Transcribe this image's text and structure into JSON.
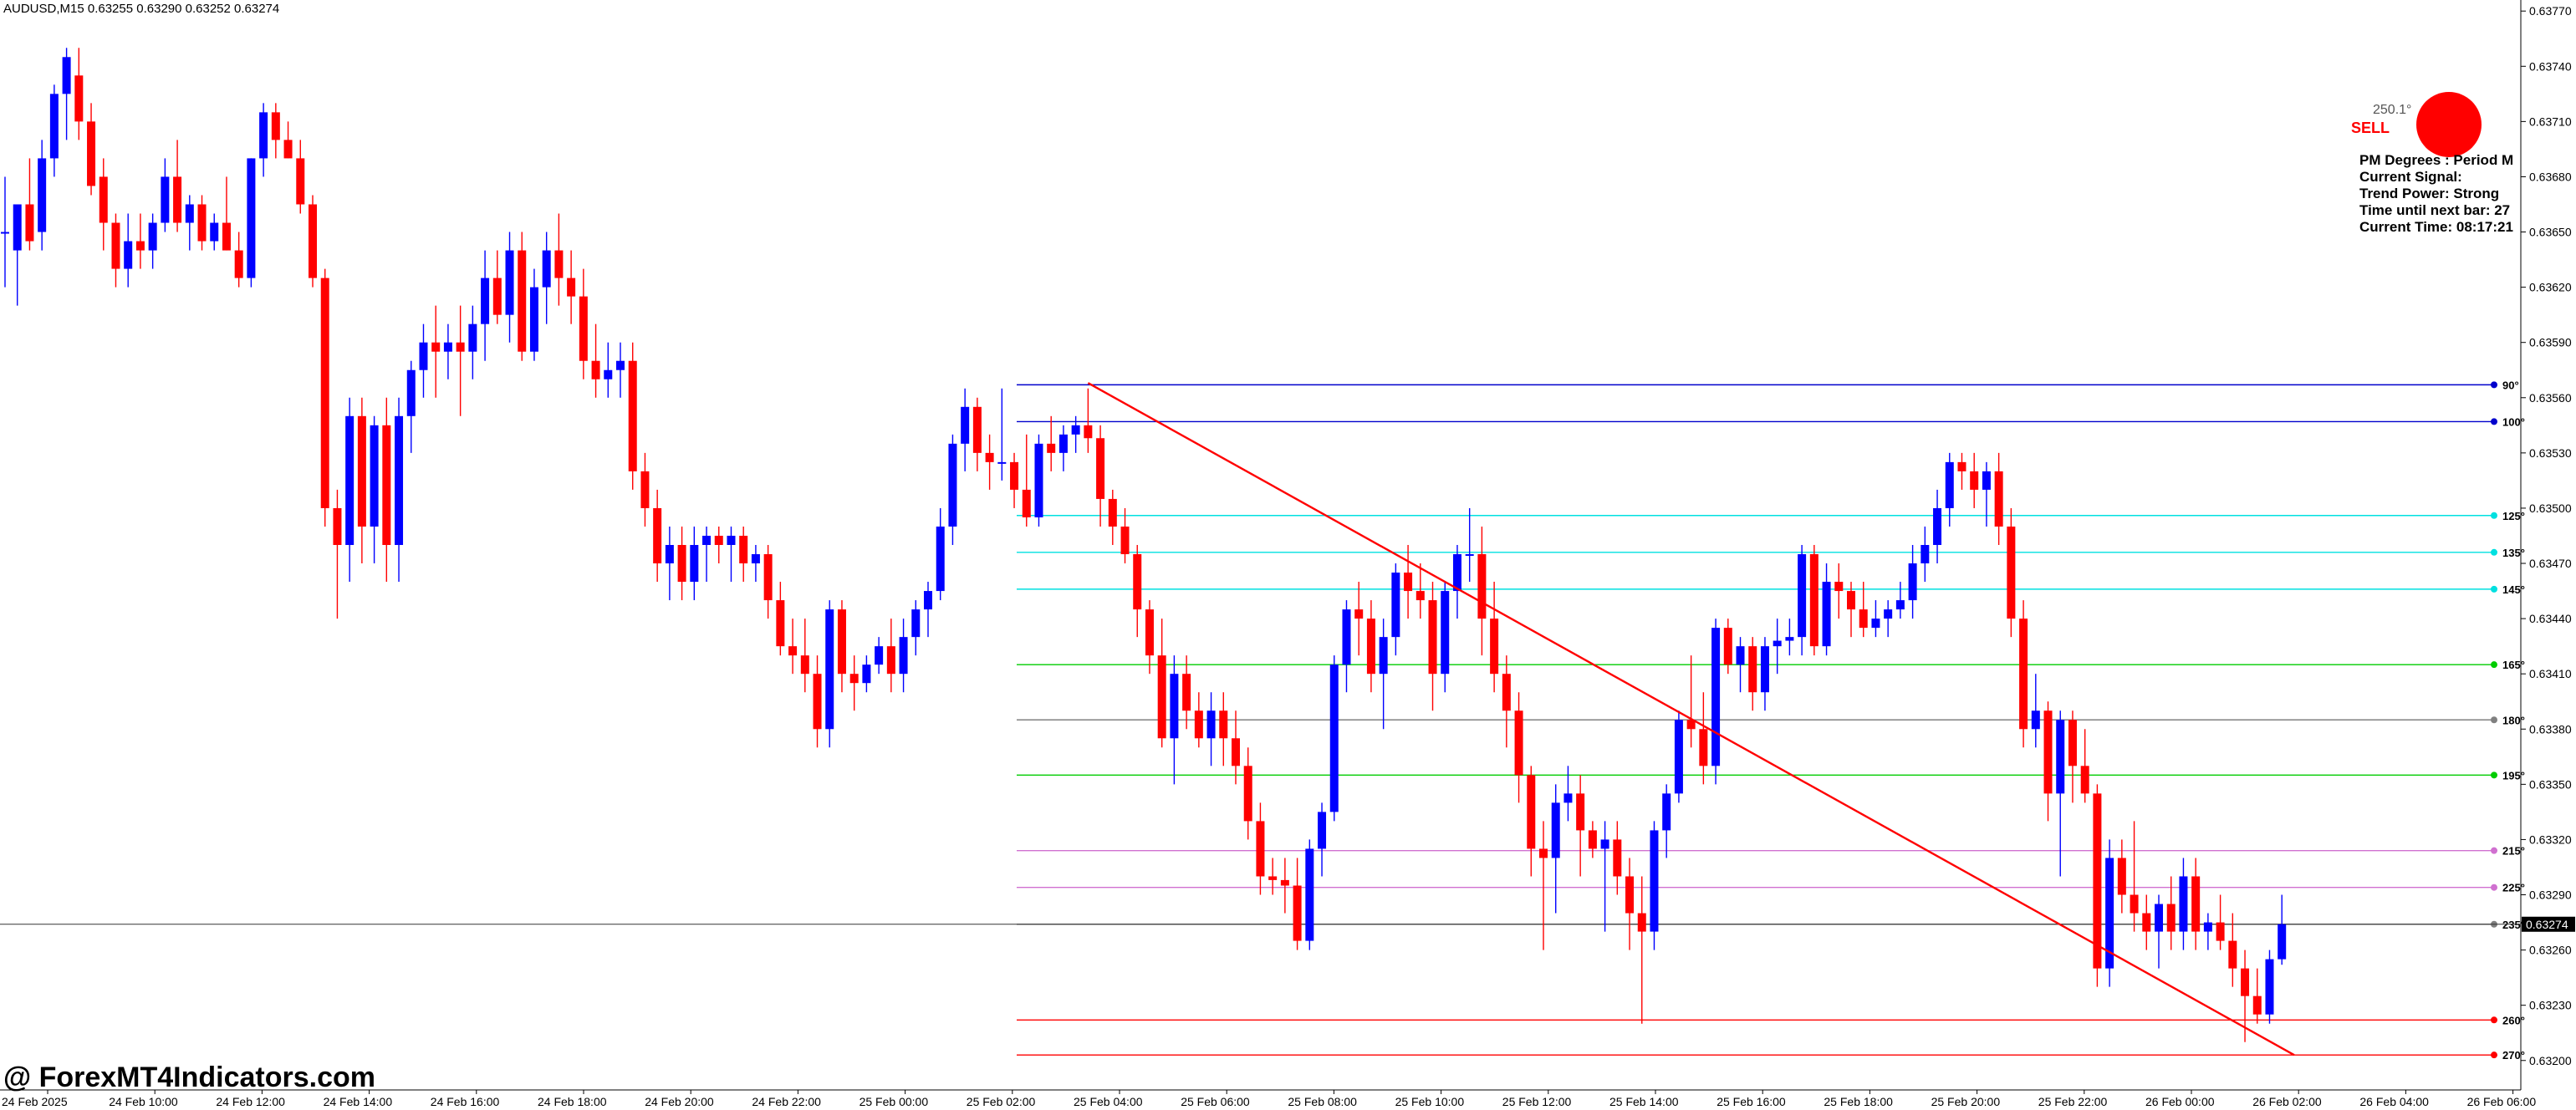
{
  "symbol_header": "AUDUSD,M15  0.63255 0.63290 0.63252 0.63274",
  "watermark": "@ ForexMT4Indicators.com",
  "indicator": {
    "degree_text": "250.1°",
    "signal_text": "SELL",
    "signal_color": "#ff0000",
    "panel_lines": [
      "PM Degrees : Period M",
      "Current Signal:",
      "Trend Power: Strong",
      "Time until next bar: 27",
      "Current Time: 08:17:21"
    ]
  },
  "colors": {
    "bull": "#0000ff",
    "bear": "#ff0000",
    "grid_axis": "#000000",
    "trendline": "#ff0000"
  },
  "chart_data": {
    "type": "candlestick",
    "symbol": "AUDUSD",
    "timeframe": "M15",
    "current_price": "0.63274",
    "ylim": [
      0.6318,
      0.6376
    ],
    "price_ticks": [
      "0.63770",
      "0.63740",
      "0.63710",
      "0.63680",
      "0.63650",
      "0.63620",
      "0.63590",
      "0.63560",
      "0.63530",
      "0.63500",
      "0.63470",
      "0.63440",
      "0.63410",
      "0.63380",
      "0.63350",
      "0.63320",
      "0.63290",
      "0.63260",
      "0.63230",
      "0.63200"
    ],
    "time_ticks": [
      "24 Feb 2025",
      "24 Feb 10:00",
      "24 Feb 12:00",
      "24 Feb 14:00",
      "24 Feb 16:00",
      "24 Feb 18:00",
      "24 Feb 20:00",
      "24 Feb 22:00",
      "25 Feb 00:00",
      "25 Feb 02:00",
      "25 Feb 04:00",
      "25 Feb 06:00",
      "25 Feb 08:00",
      "25 Feb 10:00",
      "25 Feb 12:00",
      "25 Feb 14:00",
      "25 Feb 16:00",
      "25 Feb 18:00",
      "25 Feb 20:00",
      "25 Feb 22:00",
      "26 Feb 00:00",
      "26 Feb 02:00",
      "26 Feb 04:00",
      "26 Feb 06:00"
    ],
    "gann_levels": [
      {
        "label": "90°",
        "price": 0.63567,
        "color": "#0000cc"
      },
      {
        "label": "100°",
        "price": 0.63547,
        "color": "#0000cc"
      },
      {
        "label": "125°",
        "price": 0.63496,
        "color": "#00e0e0"
      },
      {
        "label": "135°",
        "price": 0.63476,
        "color": "#00e0e0"
      },
      {
        "label": "145°",
        "price": 0.63456,
        "color": "#00e0e0"
      },
      {
        "label": "165°",
        "price": 0.63415,
        "color": "#00cc00"
      },
      {
        "label": "180°",
        "price": 0.63385,
        "color": "#808080"
      },
      {
        "label": "195°",
        "price": 0.63355,
        "color": "#00cc00"
      },
      {
        "label": "215°",
        "price": 0.63314,
        "color": "#d070d0"
      },
      {
        "label": "225°",
        "price": 0.63294,
        "color": "#d070d0"
      },
      {
        "label": "235°",
        "price": 0.63274,
        "color": "#808080"
      },
      {
        "label": "260°",
        "price": 0.63222,
        "color": "#ff0000"
      },
      {
        "label": "270°",
        "price": 0.63203,
        "color": "#ff0000"
      }
    ],
    "trendline": {
      "from": {
        "bar": 88,
        "price": 0.63568
      },
      "to": {
        "bar": 186,
        "price": 0.63203
      }
    },
    "ohlc": [
      [
        0.6365,
        0.6368,
        0.6362,
        0.6365
      ],
      [
        0.6364,
        0.63665,
        0.6361,
        0.63665
      ],
      [
        0.63665,
        0.6369,
        0.6364,
        0.63645
      ],
      [
        0.6365,
        0.637,
        0.6364,
        0.6369
      ],
      [
        0.6369,
        0.6373,
        0.6368,
        0.63725
      ],
      [
        0.63725,
        0.6375,
        0.637,
        0.63745
      ],
      [
        0.63735,
        0.6375,
        0.637,
        0.6371
      ],
      [
        0.6371,
        0.6372,
        0.6367,
        0.63675
      ],
      [
        0.6368,
        0.6369,
        0.6364,
        0.63655
      ],
      [
        0.63655,
        0.6366,
        0.6362,
        0.6363
      ],
      [
        0.6363,
        0.6366,
        0.6362,
        0.63645
      ],
      [
        0.63645,
        0.6366,
        0.6363,
        0.6364
      ],
      [
        0.6364,
        0.6366,
        0.6363,
        0.63655
      ],
      [
        0.63655,
        0.6369,
        0.6365,
        0.6368
      ],
      [
        0.6368,
        0.637,
        0.6365,
        0.63655
      ],
      [
        0.63655,
        0.6367,
        0.6364,
        0.63665
      ],
      [
        0.63665,
        0.6367,
        0.6364,
        0.63645
      ],
      [
        0.63645,
        0.6366,
        0.6364,
        0.63655
      ],
      [
        0.63655,
        0.6368,
        0.6364,
        0.6364
      ],
      [
        0.6364,
        0.6365,
        0.6362,
        0.63625
      ],
      [
        0.63625,
        0.6369,
        0.6362,
        0.6369
      ],
      [
        0.6369,
        0.6372,
        0.6368,
        0.63715
      ],
      [
        0.63715,
        0.6372,
        0.6369,
        0.637
      ],
      [
        0.637,
        0.6371,
        0.6369,
        0.6369
      ],
      [
        0.6369,
        0.637,
        0.6366,
        0.63665
      ],
      [
        0.63665,
        0.6367,
        0.6362,
        0.63625
      ],
      [
        0.63625,
        0.6363,
        0.6349,
        0.635
      ],
      [
        0.635,
        0.6351,
        0.6344,
        0.6348
      ],
      [
        0.6348,
        0.6356,
        0.6346,
        0.6355
      ],
      [
        0.6355,
        0.6356,
        0.6347,
        0.6349
      ],
      [
        0.6349,
        0.6355,
        0.6347,
        0.63545
      ],
      [
        0.63545,
        0.6356,
        0.6346,
        0.6348
      ],
      [
        0.6348,
        0.6356,
        0.6346,
        0.6355
      ],
      [
        0.6355,
        0.6358,
        0.6353,
        0.63575
      ],
      [
        0.63575,
        0.636,
        0.6356,
        0.6359
      ],
      [
        0.6359,
        0.6361,
        0.6356,
        0.63585
      ],
      [
        0.63585,
        0.636,
        0.6357,
        0.6359
      ],
      [
        0.6359,
        0.6361,
        0.6355,
        0.63585
      ],
      [
        0.63585,
        0.6361,
        0.6357,
        0.636
      ],
      [
        0.636,
        0.6364,
        0.6358,
        0.63625
      ],
      [
        0.63625,
        0.6364,
        0.636,
        0.63605
      ],
      [
        0.63605,
        0.6365,
        0.6359,
        0.6364
      ],
      [
        0.6364,
        0.6365,
        0.6358,
        0.63585
      ],
      [
        0.63585,
        0.6363,
        0.6358,
        0.6362
      ],
      [
        0.6362,
        0.6365,
        0.636,
        0.6364
      ],
      [
        0.6364,
        0.6366,
        0.6361,
        0.63625
      ],
      [
        0.63625,
        0.6364,
        0.636,
        0.63615
      ],
      [
        0.63615,
        0.6363,
        0.6357,
        0.6358
      ],
      [
        0.6358,
        0.636,
        0.6356,
        0.6357
      ],
      [
        0.6357,
        0.6359,
        0.6356,
        0.63575
      ],
      [
        0.63575,
        0.6359,
        0.6356,
        0.6358
      ],
      [
        0.6358,
        0.6359,
        0.6351,
        0.6352
      ],
      [
        0.6352,
        0.6353,
        0.6349,
        0.635
      ],
      [
        0.635,
        0.6351,
        0.6346,
        0.6347
      ],
      [
        0.6347,
        0.6349,
        0.6345,
        0.6348
      ],
      [
        0.6348,
        0.6349,
        0.6345,
        0.6346
      ],
      [
        0.6346,
        0.6349,
        0.6345,
        0.6348
      ],
      [
        0.6348,
        0.6349,
        0.6346,
        0.63485
      ],
      [
        0.63485,
        0.6349,
        0.6347,
        0.6348
      ],
      [
        0.6348,
        0.6349,
        0.6346,
        0.63485
      ],
      [
        0.63485,
        0.6349,
        0.6346,
        0.6347
      ],
      [
        0.6347,
        0.6348,
        0.6346,
        0.63475
      ],
      [
        0.63475,
        0.6348,
        0.6344,
        0.6345
      ],
      [
        0.6345,
        0.6346,
        0.6342,
        0.63425
      ],
      [
        0.63425,
        0.6344,
        0.6341,
        0.6342
      ],
      [
        0.6342,
        0.6344,
        0.634,
        0.6341
      ],
      [
        0.6341,
        0.6342,
        0.6337,
        0.6338
      ],
      [
        0.6338,
        0.6345,
        0.6337,
        0.63445
      ],
      [
        0.63445,
        0.6345,
        0.634,
        0.6341
      ],
      [
        0.6341,
        0.6342,
        0.6339,
        0.63405
      ],
      [
        0.63405,
        0.6342,
        0.634,
        0.63415
      ],
      [
        0.63415,
        0.6343,
        0.6341,
        0.63425
      ],
      [
        0.63425,
        0.6344,
        0.634,
        0.6341
      ],
      [
        0.6341,
        0.6344,
        0.634,
        0.6343
      ],
      [
        0.6343,
        0.6345,
        0.6342,
        0.63445
      ],
      [
        0.63445,
        0.6346,
        0.6343,
        0.63455
      ],
      [
        0.63455,
        0.635,
        0.6345,
        0.6349
      ],
      [
        0.6349,
        0.6354,
        0.6348,
        0.63535
      ],
      [
        0.63535,
        0.63565,
        0.6352,
        0.63555
      ],
      [
        0.63555,
        0.6356,
        0.6352,
        0.6353
      ],
      [
        0.6353,
        0.6354,
        0.6351,
        0.63525
      ],
      [
        0.63525,
        0.63565,
        0.63515,
        0.63525
      ],
      [
        0.63525,
        0.6353,
        0.635,
        0.6351
      ],
      [
        0.6351,
        0.6354,
        0.6349,
        0.63495
      ],
      [
        0.63495,
        0.6354,
        0.6349,
        0.63535
      ],
      [
        0.63535,
        0.6355,
        0.6352,
        0.6353
      ],
      [
        0.6353,
        0.63545,
        0.6352,
        0.6354
      ],
      [
        0.6354,
        0.6355,
        0.6353,
        0.63545
      ],
      [
        0.63545,
        0.63565,
        0.6353,
        0.63538
      ],
      [
        0.63538,
        0.63545,
        0.6349,
        0.63505
      ],
      [
        0.63505,
        0.6351,
        0.6348,
        0.6349
      ],
      [
        0.6349,
        0.635,
        0.6347,
        0.63475
      ],
      [
        0.63475,
        0.6348,
        0.6343,
        0.63445
      ],
      [
        0.63445,
        0.6345,
        0.6341,
        0.6342
      ],
      [
        0.6342,
        0.6344,
        0.6337,
        0.63375
      ],
      [
        0.63375,
        0.6342,
        0.6335,
        0.6341
      ],
      [
        0.6341,
        0.6342,
        0.6338,
        0.6339
      ],
      [
        0.6339,
        0.634,
        0.6337,
        0.63375
      ],
      [
        0.63375,
        0.634,
        0.6336,
        0.6339
      ],
      [
        0.6339,
        0.634,
        0.6336,
        0.63375
      ],
      [
        0.63375,
        0.6339,
        0.6335,
        0.6336
      ],
      [
        0.6336,
        0.6337,
        0.6332,
        0.6333
      ],
      [
        0.6333,
        0.6334,
        0.6329,
        0.633
      ],
      [
        0.633,
        0.6331,
        0.6329,
        0.63298
      ],
      [
        0.63298,
        0.6331,
        0.6328,
        0.63295
      ],
      [
        0.63295,
        0.6331,
        0.6326,
        0.63265
      ],
      [
        0.63265,
        0.6332,
        0.6326,
        0.63315
      ],
      [
        0.63315,
        0.6334,
        0.633,
        0.63335
      ],
      [
        0.63335,
        0.6342,
        0.6333,
        0.63415
      ],
      [
        0.63415,
        0.6345,
        0.634,
        0.63445
      ],
      [
        0.63445,
        0.6346,
        0.6342,
        0.6344
      ],
      [
        0.6344,
        0.6345,
        0.634,
        0.6341
      ],
      [
        0.6341,
        0.6344,
        0.6338,
        0.6343
      ],
      [
        0.6343,
        0.6347,
        0.6342,
        0.63465
      ],
      [
        0.63465,
        0.6348,
        0.6344,
        0.63455
      ],
      [
        0.63455,
        0.6347,
        0.6344,
        0.6345
      ],
      [
        0.6345,
        0.6346,
        0.6339,
        0.6341
      ],
      [
        0.6341,
        0.6346,
        0.634,
        0.63455
      ],
      [
        0.63455,
        0.6348,
        0.6344,
        0.63475
      ],
      [
        0.63475,
        0.635,
        0.6346,
        0.63475
      ],
      [
        0.63475,
        0.6349,
        0.6342,
        0.6344
      ],
      [
        0.6344,
        0.6346,
        0.634,
        0.6341
      ],
      [
        0.6341,
        0.6342,
        0.6337,
        0.6339
      ],
      [
        0.6339,
        0.634,
        0.6334,
        0.63355
      ],
      [
        0.63355,
        0.6336,
        0.633,
        0.63315
      ],
      [
        0.63315,
        0.6333,
        0.6326,
        0.6331
      ],
      [
        0.6331,
        0.6335,
        0.6328,
        0.6334
      ],
      [
        0.6334,
        0.6336,
        0.6333,
        0.63345
      ],
      [
        0.63345,
        0.63355,
        0.633,
        0.63325
      ],
      [
        0.63325,
        0.6333,
        0.6331,
        0.63315
      ],
      [
        0.63315,
        0.6333,
        0.6327,
        0.6332
      ],
      [
        0.6332,
        0.6333,
        0.6329,
        0.633
      ],
      [
        0.633,
        0.6331,
        0.6326,
        0.6328
      ],
      [
        0.6328,
        0.633,
        0.6322,
        0.6327
      ],
      [
        0.6327,
        0.6333,
        0.6326,
        0.63325
      ],
      [
        0.63325,
        0.6335,
        0.6331,
        0.63345
      ],
      [
        0.63345,
        0.6339,
        0.6334,
        0.63385
      ],
      [
        0.63385,
        0.6342,
        0.6337,
        0.6338
      ],
      [
        0.6338,
        0.634,
        0.6335,
        0.6336
      ],
      [
        0.6336,
        0.6344,
        0.6335,
        0.63435
      ],
      [
        0.63435,
        0.6344,
        0.6341,
        0.63415
      ],
      [
        0.63415,
        0.6343,
        0.634,
        0.63425
      ],
      [
        0.63425,
        0.6343,
        0.6339,
        0.634
      ],
      [
        0.634,
        0.6343,
        0.6339,
        0.63425
      ],
      [
        0.63425,
        0.6344,
        0.6341,
        0.63428
      ],
      [
        0.63428,
        0.6344,
        0.6342,
        0.6343
      ],
      [
        0.6343,
        0.6348,
        0.6342,
        0.63475
      ],
      [
        0.63475,
        0.6348,
        0.6342,
        0.63425
      ],
      [
        0.63425,
        0.6347,
        0.6342,
        0.6346
      ],
      [
        0.6346,
        0.6347,
        0.6344,
        0.63455
      ],
      [
        0.63455,
        0.6346,
        0.6343,
        0.63445
      ],
      [
        0.63445,
        0.6346,
        0.6343,
        0.63435
      ],
      [
        0.63435,
        0.6345,
        0.6343,
        0.6344
      ],
      [
        0.6344,
        0.6345,
        0.6343,
        0.63445
      ],
      [
        0.63445,
        0.6346,
        0.6344,
        0.6345
      ],
      [
        0.6345,
        0.6348,
        0.6344,
        0.6347
      ],
      [
        0.6347,
        0.6349,
        0.6346,
        0.6348
      ],
      [
        0.6348,
        0.6351,
        0.6347,
        0.635
      ],
      [
        0.635,
        0.6353,
        0.6349,
        0.63525
      ],
      [
        0.63525,
        0.6353,
        0.6351,
        0.6352
      ],
      [
        0.6352,
        0.6353,
        0.635,
        0.6351
      ],
      [
        0.6351,
        0.63525,
        0.6349,
        0.6352
      ],
      [
        0.6352,
        0.6353,
        0.6348,
        0.6349
      ],
      [
        0.6349,
        0.635,
        0.6343,
        0.6344
      ],
      [
        0.6344,
        0.6345,
        0.6337,
        0.6338
      ],
      [
        0.6338,
        0.6341,
        0.6337,
        0.6339
      ],
      [
        0.6339,
        0.63395,
        0.6333,
        0.63345
      ],
      [
        0.63345,
        0.6339,
        0.633,
        0.63385
      ],
      [
        0.63385,
        0.6339,
        0.6334,
        0.6336
      ],
      [
        0.6336,
        0.6338,
        0.6334,
        0.63345
      ],
      [
        0.63345,
        0.6335,
        0.6324,
        0.6325
      ],
      [
        0.6325,
        0.6332,
        0.6324,
        0.6331
      ],
      [
        0.6331,
        0.6332,
        0.6328,
        0.6329
      ],
      [
        0.6329,
        0.6333,
        0.6327,
        0.6328
      ],
      [
        0.6328,
        0.6329,
        0.6326,
        0.6327
      ],
      [
        0.6327,
        0.6329,
        0.6325,
        0.63285
      ],
      [
        0.63285,
        0.633,
        0.6326,
        0.6327
      ],
      [
        0.6327,
        0.6331,
        0.6326,
        0.633
      ],
      [
        0.633,
        0.6331,
        0.6326,
        0.6327
      ],
      [
        0.6327,
        0.6328,
        0.6326,
        0.63275
      ],
      [
        0.63275,
        0.6329,
        0.6326,
        0.63265
      ],
      [
        0.63265,
        0.6328,
        0.6324,
        0.6325
      ],
      [
        0.6325,
        0.6326,
        0.6321,
        0.63235
      ],
      [
        0.63235,
        0.6325,
        0.6322,
        0.63225
      ],
      [
        0.63225,
        0.6326,
        0.6322,
        0.63255
      ],
      [
        0.63255,
        0.6329,
        0.63252,
        0.63274
      ]
    ]
  }
}
